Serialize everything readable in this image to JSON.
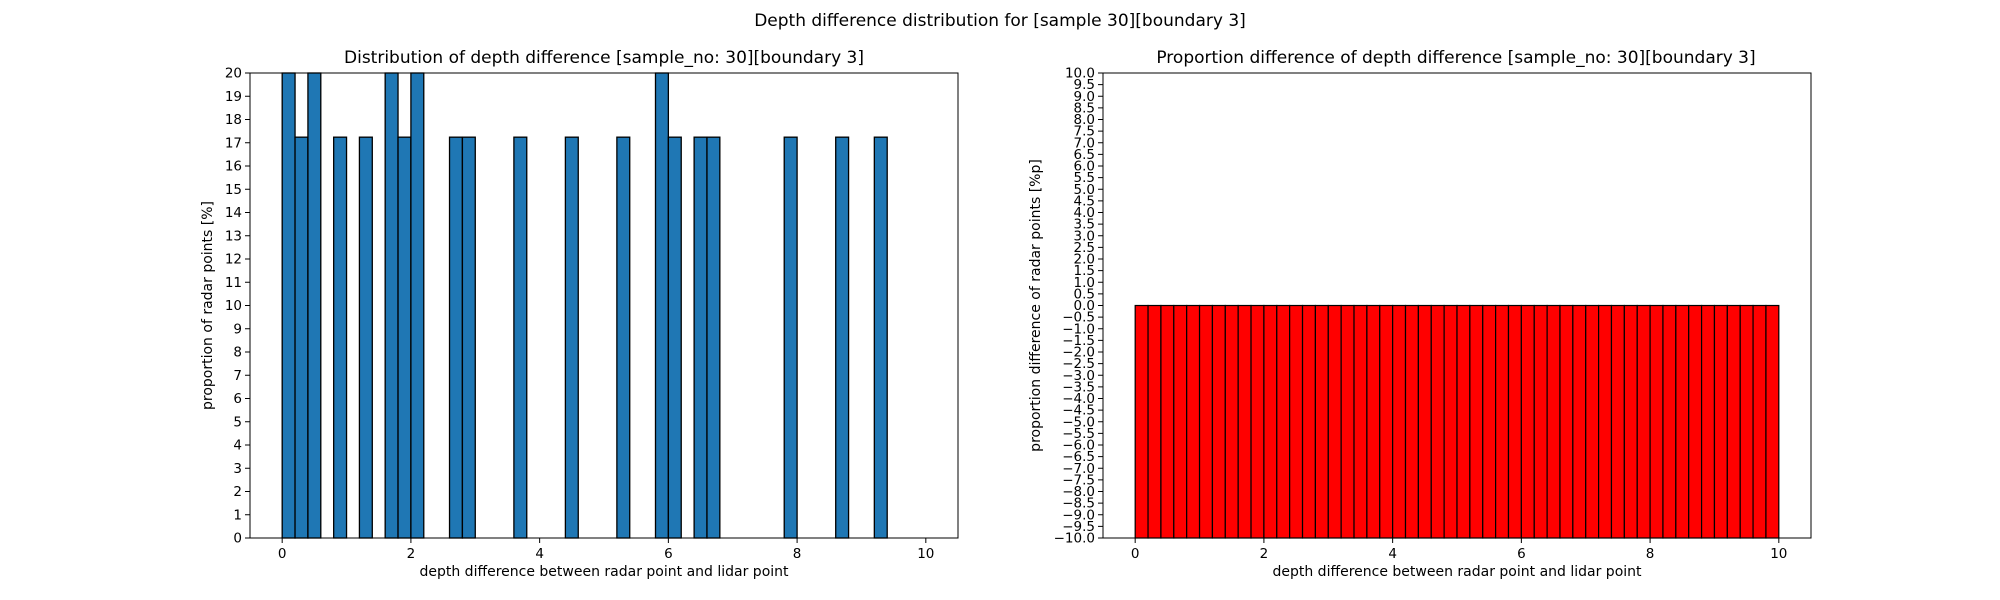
{
  "figure": {
    "suptitle": "Depth difference distribution for [sample 30][boundary 3]"
  },
  "chart_data": [
    {
      "type": "bar",
      "title": "Distribution of depth difference [sample_no: 30][boundary 3]",
      "xlabel": "depth difference between radar point and lidar point",
      "ylabel": "proportion of radar points [%]",
      "xlim": [
        -0.5,
        10.5
      ],
      "ylim": [
        0,
        20
      ],
      "xticks": [
        0,
        2,
        4,
        6,
        8,
        10
      ],
      "yticks": [
        0,
        1,
        2,
        3,
        4,
        5,
        6,
        7,
        8,
        9,
        10,
        11,
        12,
        13,
        14,
        15,
        16,
        17,
        18,
        19,
        20
      ],
      "bin_width": 0.2,
      "bars": [
        {
          "x": 0.0,
          "value": 20
        },
        {
          "x": 0.2,
          "value": 17.24
        },
        {
          "x": 0.4,
          "value": 20
        },
        {
          "x": 0.8,
          "value": 17.24
        },
        {
          "x": 1.2,
          "value": 17.24
        },
        {
          "x": 1.6,
          "value": 20
        },
        {
          "x": 1.8,
          "value": 17.24
        },
        {
          "x": 2.0,
          "value": 20
        },
        {
          "x": 2.6,
          "value": 17.24
        },
        {
          "x": 2.8,
          "value": 17.24
        },
        {
          "x": 3.6,
          "value": 17.24
        },
        {
          "x": 4.4,
          "value": 17.24
        },
        {
          "x": 5.2,
          "value": 17.24
        },
        {
          "x": 5.8,
          "value": 20
        },
        {
          "x": 6.0,
          "value": 17.24
        },
        {
          "x": 6.4,
          "value": 17.24
        },
        {
          "x": 6.6,
          "value": 17.24
        },
        {
          "x": 7.8,
          "value": 17.24
        },
        {
          "x": 8.6,
          "value": 17.24
        },
        {
          "x": 9.2,
          "value": 17.24
        }
      ],
      "color": "#1f77b4",
      "edgecolor": "#000000",
      "grid": false
    },
    {
      "type": "bar",
      "title": "Proportion difference of depth difference [sample_no: 30][boundary 3]",
      "xlabel": "depth difference between radar point and lidar point",
      "ylabel": "proportion difference of radar points [%p]",
      "xlim": [
        -0.5,
        10.5
      ],
      "ylim": [
        -10,
        10
      ],
      "xticks": [
        0,
        2,
        4,
        6,
        8,
        10
      ],
      "yticks": [
        10.0,
        9.5,
        9.0,
        8.5,
        8.0,
        7.5,
        7.0,
        6.5,
        6.0,
        5.5,
        5.0,
        4.5,
        4.0,
        3.5,
        3.0,
        2.5,
        2.0,
        1.5,
        1.0,
        0.5,
        0.0,
        -0.5,
        -1.0,
        -1.5,
        -2.0,
        -2.5,
        -3.0,
        -3.5,
        -4.0,
        -4.5,
        -5.0,
        -5.5,
        -6.0,
        -6.5,
        -7.0,
        -7.5,
        -8.0,
        -8.5,
        -9.0,
        -9.5,
        -10.0
      ],
      "bin_width": 0.2,
      "bin_start": 0,
      "bin_count": 50,
      "values_note_free": true,
      "bars_value": 0,
      "bars_fill_to": -10,
      "color": "#ff0000",
      "edgecolor": "#000000",
      "grid": false
    }
  ]
}
